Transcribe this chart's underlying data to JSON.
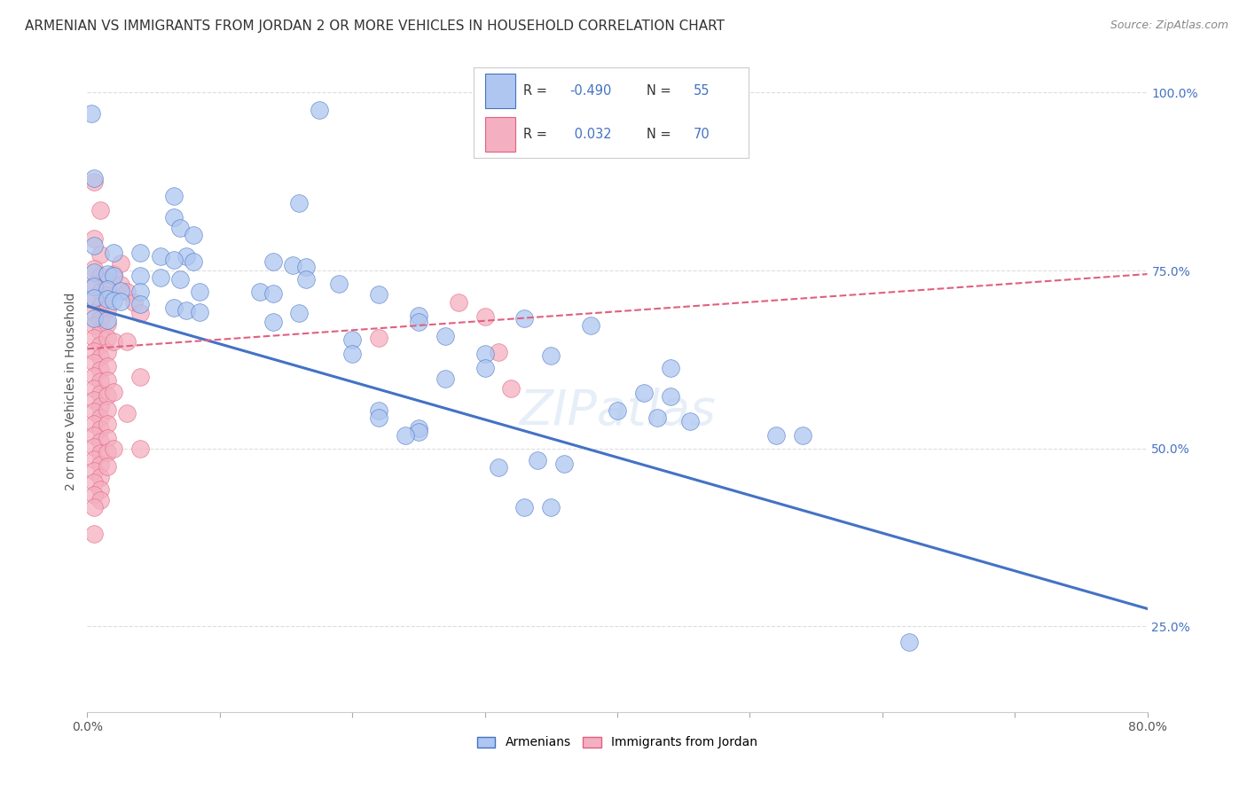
{
  "title": "ARMENIAN VS IMMIGRANTS FROM JORDAN 2 OR MORE VEHICLES IN HOUSEHOLD CORRELATION CHART",
  "source": "Source: ZipAtlas.com",
  "ylabel": "2 or more Vehicles in Household",
  "right_ytick_labels": [
    "100.0%",
    "75.0%",
    "50.0%",
    "25.0%"
  ],
  "right_ytick_values": [
    1.0,
    0.75,
    0.5,
    0.25
  ],
  "watermark": "ZIPatlas",
  "armenians_scatter": [
    [
      0.003,
      0.97
    ],
    [
      0.175,
      0.975
    ],
    [
      0.005,
      0.88
    ],
    [
      0.065,
      0.855
    ],
    [
      0.16,
      0.845
    ],
    [
      0.065,
      0.825
    ],
    [
      0.07,
      0.81
    ],
    [
      0.08,
      0.8
    ],
    [
      0.005,
      0.785
    ],
    [
      0.02,
      0.775
    ],
    [
      0.04,
      0.775
    ],
    [
      0.055,
      0.77
    ],
    [
      0.075,
      0.77
    ],
    [
      0.065,
      0.765
    ],
    [
      0.08,
      0.762
    ],
    [
      0.14,
      0.762
    ],
    [
      0.155,
      0.758
    ],
    [
      0.165,
      0.755
    ],
    [
      0.005,
      0.748
    ],
    [
      0.015,
      0.745
    ],
    [
      0.02,
      0.742
    ],
    [
      0.04,
      0.742
    ],
    [
      0.055,
      0.74
    ],
    [
      0.07,
      0.738
    ],
    [
      0.165,
      0.738
    ],
    [
      0.19,
      0.732
    ],
    [
      0.005,
      0.728
    ],
    [
      0.015,
      0.724
    ],
    [
      0.025,
      0.722
    ],
    [
      0.04,
      0.72
    ],
    [
      0.085,
      0.72
    ],
    [
      0.13,
      0.72
    ],
    [
      0.14,
      0.718
    ],
    [
      0.22,
      0.716
    ],
    [
      0.005,
      0.712
    ],
    [
      0.015,
      0.71
    ],
    [
      0.02,
      0.708
    ],
    [
      0.025,
      0.706
    ],
    [
      0.04,
      0.703
    ],
    [
      0.065,
      0.698
    ],
    [
      0.075,
      0.694
    ],
    [
      0.085,
      0.691
    ],
    [
      0.16,
      0.69
    ],
    [
      0.25,
      0.687
    ],
    [
      0.005,
      0.683
    ],
    [
      0.015,
      0.68
    ],
    [
      0.33,
      0.683
    ],
    [
      0.38,
      0.673
    ],
    [
      0.27,
      0.658
    ],
    [
      0.2,
      0.653
    ],
    [
      0.14,
      0.678
    ],
    [
      0.25,
      0.678
    ],
    [
      0.3,
      0.633
    ],
    [
      0.35,
      0.63
    ],
    [
      0.3,
      0.613
    ],
    [
      0.44,
      0.613
    ],
    [
      0.27,
      0.598
    ],
    [
      0.42,
      0.578
    ],
    [
      0.44,
      0.573
    ],
    [
      0.4,
      0.553
    ],
    [
      0.43,
      0.543
    ],
    [
      0.455,
      0.538
    ],
    [
      0.25,
      0.528
    ],
    [
      0.25,
      0.523
    ],
    [
      0.24,
      0.518
    ],
    [
      0.52,
      0.518
    ],
    [
      0.54,
      0.518
    ],
    [
      0.2,
      0.633
    ],
    [
      0.22,
      0.553
    ],
    [
      0.22,
      0.543
    ],
    [
      0.34,
      0.483
    ],
    [
      0.36,
      0.478
    ],
    [
      0.31,
      0.473
    ],
    [
      0.33,
      0.418
    ],
    [
      0.35,
      0.418
    ],
    [
      0.62,
      0.228
    ]
  ],
  "jordan_scatter": [
    [
      0.005,
      0.875
    ],
    [
      0.01,
      0.835
    ],
    [
      0.005,
      0.795
    ],
    [
      0.01,
      0.773
    ],
    [
      0.005,
      0.752
    ],
    [
      0.01,
      0.742
    ],
    [
      0.005,
      0.73
    ],
    [
      0.01,
      0.72
    ],
    [
      0.005,
      0.71
    ],
    [
      0.01,
      0.7
    ],
    [
      0.005,
      0.69
    ],
    [
      0.01,
      0.682
    ],
    [
      0.005,
      0.673
    ],
    [
      0.01,
      0.664
    ],
    [
      0.005,
      0.655
    ],
    [
      0.01,
      0.646
    ],
    [
      0.005,
      0.637
    ],
    [
      0.01,
      0.628
    ],
    [
      0.005,
      0.62
    ],
    [
      0.01,
      0.611
    ],
    [
      0.005,
      0.602
    ],
    [
      0.01,
      0.594
    ],
    [
      0.005,
      0.585
    ],
    [
      0.01,
      0.577
    ],
    [
      0.005,
      0.568
    ],
    [
      0.01,
      0.56
    ],
    [
      0.005,
      0.552
    ],
    [
      0.01,
      0.543
    ],
    [
      0.005,
      0.535
    ],
    [
      0.01,
      0.527
    ],
    [
      0.005,
      0.518
    ],
    [
      0.01,
      0.51
    ],
    [
      0.005,
      0.502
    ],
    [
      0.01,
      0.493
    ],
    [
      0.005,
      0.485
    ],
    [
      0.01,
      0.477
    ],
    [
      0.005,
      0.468
    ],
    [
      0.01,
      0.46
    ],
    [
      0.005,
      0.452
    ],
    [
      0.01,
      0.443
    ],
    [
      0.005,
      0.435
    ],
    [
      0.01,
      0.427
    ],
    [
      0.015,
      0.735
    ],
    [
      0.015,
      0.715
    ],
    [
      0.015,
      0.695
    ],
    [
      0.015,
      0.675
    ],
    [
      0.015,
      0.655
    ],
    [
      0.015,
      0.635
    ],
    [
      0.015,
      0.615
    ],
    [
      0.015,
      0.595
    ],
    [
      0.015,
      0.575
    ],
    [
      0.015,
      0.555
    ],
    [
      0.015,
      0.535
    ],
    [
      0.015,
      0.515
    ],
    [
      0.015,
      0.495
    ],
    [
      0.015,
      0.475
    ],
    [
      0.02,
      0.745
    ],
    [
      0.025,
      0.73
    ],
    [
      0.02,
      0.65
    ],
    [
      0.02,
      0.58
    ],
    [
      0.02,
      0.5
    ],
    [
      0.03,
      0.72
    ],
    [
      0.035,
      0.705
    ],
    [
      0.04,
      0.69
    ],
    [
      0.03,
      0.65
    ],
    [
      0.04,
      0.6
    ],
    [
      0.03,
      0.55
    ],
    [
      0.04,
      0.5
    ],
    [
      0.025,
      0.76
    ],
    [
      0.22,
      0.655
    ],
    [
      0.3,
      0.685
    ],
    [
      0.28,
      0.705
    ],
    [
      0.31,
      0.635
    ],
    [
      0.32,
      0.585
    ],
    [
      0.005,
      0.418
    ],
    [
      0.005,
      0.38
    ]
  ],
  "blue_line_x": [
    0.0,
    0.8
  ],
  "blue_line_y": [
    0.7,
    0.275
  ],
  "pink_line_x": [
    0.0,
    0.8
  ],
  "pink_line_y": [
    0.64,
    0.745
  ],
  "blue_color": "#4472c4",
  "pink_color": "#e06080",
  "scatter_blue": "#aec6f0",
  "scatter_pink": "#f4afc0",
  "background_color": "#ffffff",
  "grid_color": "#dddddd",
  "xlim": [
    0.0,
    0.8
  ],
  "ylim": [
    0.13,
    1.03
  ],
  "title_fontsize": 11,
  "source_fontsize": 9,
  "axis_label_fontsize": 10
}
